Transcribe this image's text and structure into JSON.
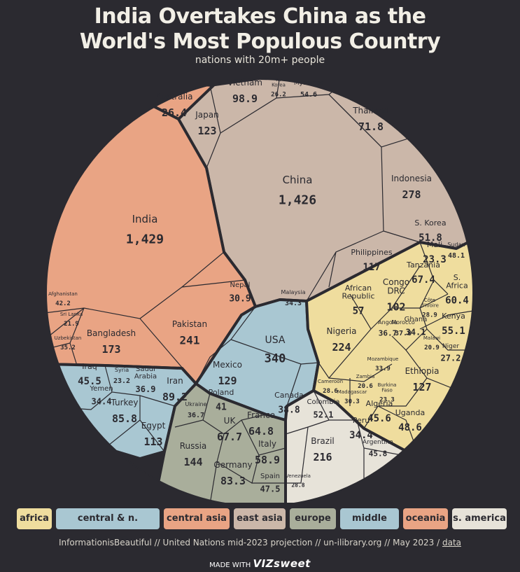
{
  "header": {
    "title_line1": "India Overtakes China as the",
    "title_line2": "World's Most Populous Country",
    "subtitle": "nations with 20m+ people"
  },
  "colors": {
    "africa": "#efdd9e",
    "central_n_america": "#a9c7d2",
    "central_asia": "#e9a484",
    "east_asia": "#cbb7a9",
    "europe": "#a9ae9b",
    "middle_east": "#a9c7d2",
    "oceania": "#e9a484",
    "s_america": "#e7e3d9",
    "border": "#2b2a30"
  },
  "chart_data": {
    "type": "voronoi-treemap",
    "unit": "millions",
    "regions": [
      {
        "name": "africa",
        "countries": [
          {
            "name": "Nigeria",
            "value": "224"
          },
          {
            "name": "Ethiopia",
            "value": "127"
          },
          {
            "name": "Congo DRC",
            "value": "102"
          },
          {
            "name": "Tanzania",
            "value": "67.4"
          },
          {
            "name": "S. Africa",
            "value": "60.4"
          },
          {
            "name": "African Republic",
            "value": "57"
          },
          {
            "name": "Kenya",
            "value": "55.1"
          },
          {
            "name": "Uganda",
            "value": "48.6"
          },
          {
            "name": "Sudan",
            "value": "48.1"
          },
          {
            "name": "Algeria",
            "value": "45.6"
          },
          {
            "name": "Morocco",
            "value": "37.8"
          },
          {
            "name": "Angola",
            "value": "36.7"
          },
          {
            "name": "Ghana",
            "value": "34.1"
          },
          {
            "name": "Mozambique",
            "value": "33.9"
          },
          {
            "name": "Madagascar",
            "value": "30.3"
          },
          {
            "name": "Côte d'Ivoire",
            "value": "28.9"
          },
          {
            "name": "Cameroon",
            "value": "28.6"
          },
          {
            "name": "Niger",
            "value": "27.2"
          },
          {
            "name": "Burkina Faso",
            "value": "23.3"
          },
          {
            "name": "Mali",
            "value": "23.3"
          },
          {
            "name": "Malawi",
            "value": "20.9"
          },
          {
            "name": "Zambia",
            "value": "20.6"
          }
        ]
      },
      {
        "name": "central & n. america",
        "countries": [
          {
            "name": "USA",
            "value": "340"
          },
          {
            "name": "Mexico",
            "value": "129"
          },
          {
            "name": "Canada",
            "value": "38.8"
          }
        ]
      },
      {
        "name": "central asia",
        "countries": [
          {
            "name": "India",
            "value": "1,429"
          },
          {
            "name": "Pakistan",
            "value": "241"
          },
          {
            "name": "Bangladesh",
            "value": "173"
          },
          {
            "name": "Afghanistan",
            "value": "42.2"
          },
          {
            "name": "Uzbekistan",
            "value": "35.2"
          },
          {
            "name": "Nepal",
            "value": "30.9"
          },
          {
            "name": "Sri Lanka",
            "value": "21.9"
          }
        ]
      },
      {
        "name": "east asia",
        "countries": [
          {
            "name": "China",
            "value": "1,426"
          },
          {
            "name": "Indonesia",
            "value": "278"
          },
          {
            "name": "Japan",
            "value": "123"
          },
          {
            "name": "Philippines",
            "value": "117"
          },
          {
            "name": "Vietnam",
            "value": "98.9"
          },
          {
            "name": "Thailand",
            "value": "71.8"
          },
          {
            "name": "Myanmar",
            "value": "54.6"
          },
          {
            "name": "S. Korea",
            "value": "51.8"
          },
          {
            "name": "Malaysia",
            "value": "34.3"
          },
          {
            "name": "N. Korea",
            "value": "26.2"
          }
        ]
      },
      {
        "name": "europe",
        "countries": [
          {
            "name": "Russia",
            "value": "144"
          },
          {
            "name": "Germany",
            "value": "83.3"
          },
          {
            "name": "UK",
            "value": "67.7"
          },
          {
            "name": "France",
            "value": "64.8"
          },
          {
            "name": "Italy",
            "value": "58.9"
          },
          {
            "name": "Spain",
            "value": "47.5"
          },
          {
            "name": "Poland",
            "value": "41"
          },
          {
            "name": "Ukraine",
            "value": "36.7"
          }
        ]
      },
      {
        "name": "middle east",
        "countries": [
          {
            "name": "Egypt",
            "value": "113"
          },
          {
            "name": "Iran",
            "value": "89.2"
          },
          {
            "name": "Turkey",
            "value": "85.8"
          },
          {
            "name": "Iraq",
            "value": "45.5"
          },
          {
            "name": "Saudi Arabia",
            "value": "36.9"
          },
          {
            "name": "Yemen",
            "value": "34.4"
          },
          {
            "name": "Syria",
            "value": "23.2"
          }
        ]
      },
      {
        "name": "oceania",
        "countries": [
          {
            "name": "Australia",
            "value": "26.4"
          }
        ]
      },
      {
        "name": "s. america",
        "countries": [
          {
            "name": "Brazil",
            "value": "216"
          },
          {
            "name": "Colombia",
            "value": "52.1"
          },
          {
            "name": "Argentina",
            "value": "45.8"
          },
          {
            "name": "Peru",
            "value": "34.4"
          },
          {
            "name": "Venezuela",
            "value": "28.8"
          }
        ]
      }
    ]
  },
  "legend": [
    {
      "label": "africa",
      "color": "#efdd9e"
    },
    {
      "label": "central & n. america",
      "color": "#a9c7d2"
    },
    {
      "label": "central asia",
      "color": "#e9a484"
    },
    {
      "label": "east asia",
      "color": "#cbb7a9"
    },
    {
      "label": "europe",
      "color": "#a9ae9b"
    },
    {
      "label": "middle east",
      "color": "#a9c7d2"
    },
    {
      "label": "oceania",
      "color": "#e9a484"
    },
    {
      "label": "s. america",
      "color": "#e7e3d9"
    }
  ],
  "footer": {
    "source": "InformationisBeautiful // United Nations mid-2023 projection // un-ilibrary.org // May 2023 /",
    "data_link": "data",
    "made_with": "MADE WITH",
    "brand": "VIZsweet"
  }
}
